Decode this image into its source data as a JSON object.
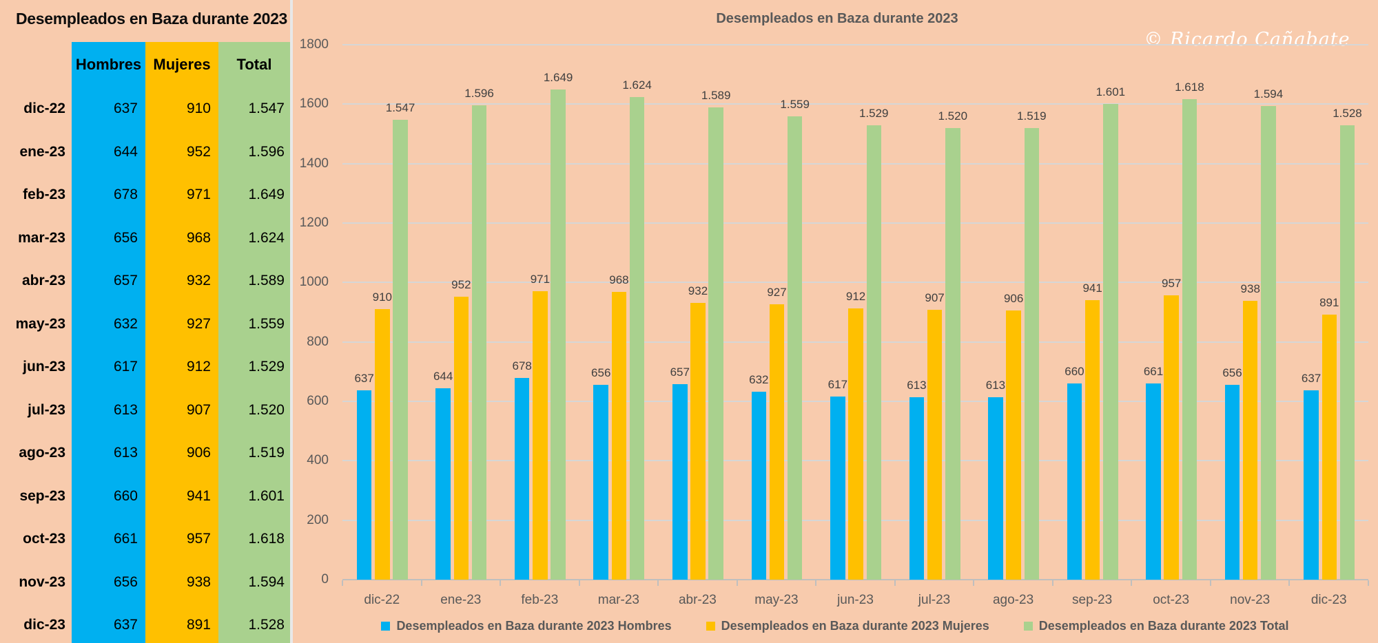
{
  "table": {
    "title": "Desempleados en Baza durante 2023",
    "headers": [
      "Hombres",
      "Mujeres",
      "Total"
    ],
    "rows": [
      {
        "label": "dic-22",
        "hombres": "637",
        "mujeres": "910",
        "total": "1.547"
      },
      {
        "label": "ene-23",
        "hombres": "644",
        "mujeres": "952",
        "total": "1.596"
      },
      {
        "label": "feb-23",
        "hombres": "678",
        "mujeres": "971",
        "total": "1.649"
      },
      {
        "label": "mar-23",
        "hombres": "656",
        "mujeres": "968",
        "total": "1.624"
      },
      {
        "label": "abr-23",
        "hombres": "657",
        "mujeres": "932",
        "total": "1.589"
      },
      {
        "label": "may-23",
        "hombres": "632",
        "mujeres": "927",
        "total": "1.559"
      },
      {
        "label": "jun-23",
        "hombres": "617",
        "mujeres": "912",
        "total": "1.529"
      },
      {
        "label": "jul-23",
        "hombres": "613",
        "mujeres": "907",
        "total": "1.520"
      },
      {
        "label": "ago-23",
        "hombres": "613",
        "mujeres": "906",
        "total": "1.519"
      },
      {
        "label": "sep-23",
        "hombres": "660",
        "mujeres": "941",
        "total": "1.601"
      },
      {
        "label": "oct-23",
        "hombres": "661",
        "mujeres": "957",
        "total": "1.618"
      },
      {
        "label": "nov-23",
        "hombres": "656",
        "mujeres": "938",
        "total": "1.594"
      },
      {
        "label": "dic-23",
        "hombres": "637",
        "mujeres": "891",
        "total": "1.528"
      }
    ]
  },
  "chart": {
    "title": "Desempleados en Baza durante 2023",
    "watermark": "© Ricardo Cañabate"
  },
  "chart_data": {
    "type": "bar",
    "title": "Desempleados en Baza durante 2023",
    "categories": [
      "dic-22",
      "ene-23",
      "feb-23",
      "mar-23",
      "abr-23",
      "may-23",
      "jun-23",
      "jul-23",
      "ago-23",
      "sep-23",
      "oct-23",
      "nov-23",
      "dic-23"
    ],
    "series": [
      {
        "id": "hombres",
        "name": "Desempleados en Baza durante 2023 Hombres",
        "color": "#00B0F0",
        "values": [
          637,
          644,
          678,
          656,
          657,
          632,
          617,
          613,
          613,
          660,
          661,
          656,
          637
        ],
        "labels": [
          "637",
          "644",
          "678",
          "656",
          "657",
          "632",
          "617",
          "613",
          "613",
          "660",
          "661",
          "656",
          "637"
        ]
      },
      {
        "id": "mujeres",
        "name": "Desempleados en Baza durante 2023 Mujeres",
        "color": "#FFC000",
        "values": [
          910,
          952,
          971,
          968,
          932,
          927,
          912,
          907,
          906,
          941,
          957,
          938,
          891
        ],
        "labels": [
          "910",
          "952",
          "971",
          "968",
          "932",
          "927",
          "912",
          "907",
          "906",
          "941",
          "957",
          "938",
          "891"
        ]
      },
      {
        "id": "total",
        "name": "Desempleados en Baza durante 2023 Total",
        "color": "#A9D18E",
        "values": [
          1547,
          1596,
          1649,
          1624,
          1589,
          1559,
          1529,
          1520,
          1519,
          1601,
          1618,
          1594,
          1528
        ],
        "labels": [
          "1.547",
          "1.596",
          "1.649",
          "1.624",
          "1.589",
          "1.559",
          "1.529",
          "1.520",
          "1.519",
          "1.601",
          "1.618",
          "1.594",
          "1.528"
        ]
      }
    ],
    "ylim": [
      0,
      1800
    ],
    "ytick_step": 200,
    "ytick_labels": [
      "0",
      "200",
      "400",
      "600",
      "800",
      "1000",
      "1200",
      "1400",
      "1600",
      "1800"
    ],
    "grid": true,
    "legend_position": "bottom",
    "colors": {
      "background": "#F8CBAD",
      "gridline": "#D6D6D6",
      "axis": "#BFBFBF",
      "axis_text": "#595959",
      "data_label_text": "#3F3F3F",
      "title_text": "#595959"
    }
  }
}
